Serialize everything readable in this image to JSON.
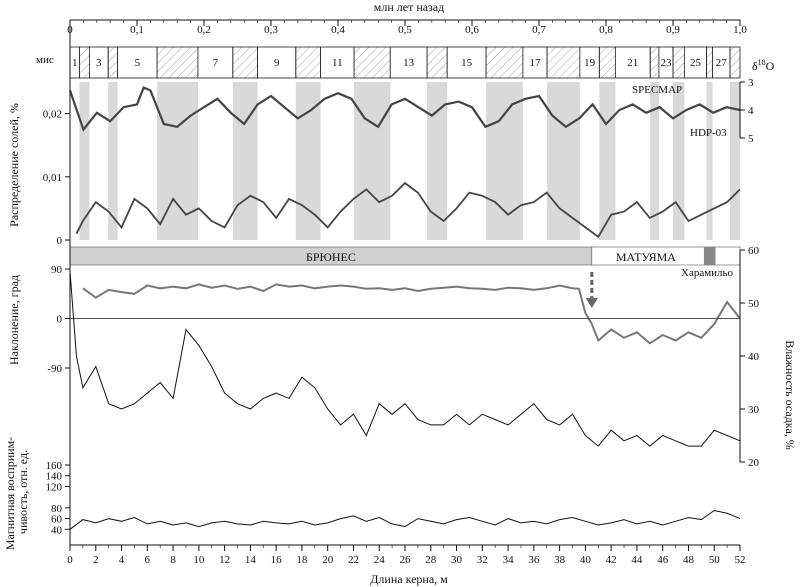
{
  "chart_data": {
    "type": "line",
    "top_axis": {
      "label": "млн лет назад",
      "range": [
        0,
        1.0
      ],
      "tick_labels": [
        "0",
        "0,1",
        "0,2",
        "0,3",
        "0,4",
        "0,5",
        "0,6",
        "0,7",
        "0,8",
        "0,9",
        "1,0"
      ],
      "tick_values": [
        0,
        0.1,
        0.2,
        0.3,
        0.4,
        0.5,
        0.6,
        0.7,
        0.8,
        0.9,
        1.0
      ]
    },
    "bottom_axis": {
      "label": "Длина керна, м",
      "range": [
        0,
        52
      ],
      "tick_labels": [
        "0",
        "2",
        "4",
        "6",
        "8",
        "10",
        "12",
        "14",
        "16",
        "18",
        "20",
        "22",
        "24",
        "26",
        "28",
        "30",
        "32",
        "34",
        "36",
        "38",
        "40",
        "42",
        "44",
        "46",
        "48",
        "50",
        "52"
      ],
      "tick_values": [
        0,
        2,
        4,
        6,
        8,
        10,
        12,
        14,
        16,
        18,
        20,
        22,
        24,
        26,
        28,
        30,
        32,
        34,
        36,
        38,
        40,
        42,
        44,
        46,
        48,
        50,
        52
      ]
    },
    "mis": {
      "label": "мис",
      "stages": [
        {
          "label": "1",
          "start": 0.0,
          "end": 0.014,
          "glacial": false
        },
        {
          "label": "",
          "start": 0.014,
          "end": 0.029,
          "glacial": true
        },
        {
          "label": "3",
          "start": 0.029,
          "end": 0.057,
          "glacial": false
        },
        {
          "label": "",
          "start": 0.057,
          "end": 0.071,
          "glacial": true
        },
        {
          "label": "5",
          "start": 0.071,
          "end": 0.13,
          "glacial": false
        },
        {
          "label": "",
          "start": 0.13,
          "end": 0.191,
          "glacial": true
        },
        {
          "label": "7",
          "start": 0.191,
          "end": 0.243,
          "glacial": false
        },
        {
          "label": "",
          "start": 0.243,
          "end": 0.28,
          "glacial": true
        },
        {
          "label": "9",
          "start": 0.28,
          "end": 0.337,
          "glacial": false
        },
        {
          "label": "",
          "start": 0.337,
          "end": 0.374,
          "glacial": true
        },
        {
          "label": "11",
          "start": 0.374,
          "end": 0.424,
          "glacial": false
        },
        {
          "label": "",
          "start": 0.424,
          "end": 0.478,
          "glacial": true
        },
        {
          "label": "13",
          "start": 0.478,
          "end": 0.533,
          "glacial": false
        },
        {
          "label": "",
          "start": 0.533,
          "end": 0.563,
          "glacial": true
        },
        {
          "label": "15",
          "start": 0.563,
          "end": 0.621,
          "glacial": false
        },
        {
          "label": "",
          "start": 0.621,
          "end": 0.676,
          "glacial": true
        },
        {
          "label": "17",
          "start": 0.676,
          "end": 0.712,
          "glacial": false
        },
        {
          "label": "",
          "start": 0.712,
          "end": 0.761,
          "glacial": true
        },
        {
          "label": "19",
          "start": 0.761,
          "end": 0.79,
          "glacial": false
        },
        {
          "label": "",
          "start": 0.79,
          "end": 0.814,
          "glacial": true
        },
        {
          "label": "21",
          "start": 0.814,
          "end": 0.866,
          "glacial": false
        },
        {
          "label": "",
          "start": 0.866,
          "end": 0.879,
          "glacial": true
        },
        {
          "label": "23",
          "start": 0.879,
          "end": 0.9,
          "glacial": false
        },
        {
          "label": "",
          "start": 0.9,
          "end": 0.917,
          "glacial": true
        },
        {
          "label": "25",
          "start": 0.917,
          "end": 0.95,
          "glacial": false
        },
        {
          "label": "",
          "start": 0.95,
          "end": 0.959,
          "glacial": true
        },
        {
          "label": "27",
          "start": 0.959,
          "end": 0.985,
          "glacial": false
        },
        {
          "label": "",
          "start": 0.985,
          "end": 1.0,
          "glacial": true
        }
      ]
    },
    "panels": [
      {
        "id": "salts",
        "ylabel": "Распределение солей, %",
        "ylim": [
          0,
          0.025
        ],
        "tick_labels": [
          "0",
          "0,01",
          "0,02"
        ],
        "tick_values": [
          0,
          0.01,
          0.02
        ],
        "right_axis": {
          "label": "δ18O",
          "tick_labels": [
            "3",
            "4",
            "5"
          ],
          "tick_values": [
            3,
            4,
            5
          ],
          "inverted": true
        },
        "series": [
          {
            "name": "SPECMAP",
            "axis": "right",
            "x_unit": "Ma",
            "x": [
              0.0,
              0.02,
              0.04,
              0.06,
              0.08,
              0.1,
              0.11,
              0.12,
              0.14,
              0.16,
              0.18,
              0.2,
              0.22,
              0.24,
              0.26,
              0.28,
              0.3,
              0.32,
              0.34,
              0.36,
              0.38,
              0.4,
              0.42,
              0.44,
              0.46,
              0.48,
              0.5,
              0.52,
              0.54,
              0.56,
              0.58,
              0.6,
              0.62,
              0.64,
              0.66,
              0.68,
              0.7,
              0.72,
              0.74,
              0.76,
              0.78,
              0.8,
              0.82,
              0.84,
              0.86,
              0.88,
              0.9,
              0.92,
              0.94,
              0.96,
              0.98,
              1.0
            ],
            "y": [
              3.3,
              4.7,
              4.1,
              4.4,
              3.9,
              3.8,
              3.2,
              3.3,
              4.5,
              4.6,
              4.2,
              3.9,
              3.6,
              4.1,
              4.5,
              3.8,
              3.5,
              3.9,
              4.3,
              4.0,
              3.6,
              3.4,
              3.6,
              4.3,
              4.6,
              3.8,
              3.6,
              3.9,
              4.2,
              3.8,
              3.7,
              3.9,
              4.6,
              4.4,
              3.8,
              3.6,
              3.5,
              4.2,
              4.6,
              4.3,
              3.8,
              4.5,
              4.0,
              3.8,
              4.1,
              3.9,
              4.3,
              4.0,
              3.8,
              4.1,
              3.9,
              4.0
            ]
          },
          {
            "name": "HDP-03",
            "axis": "left",
            "x_unit": "m",
            "x": [
              0.5,
              1,
              2,
              3,
              4,
              5,
              6,
              7,
              8,
              9,
              10,
              11,
              12,
              13,
              14,
              15,
              16,
              17,
              18,
              19,
              20,
              21,
              22,
              23,
              24,
              25,
              26,
              27,
              28,
              29,
              30,
              31,
              32,
              33,
              34,
              35,
              36,
              37,
              38,
              39,
              40,
              41,
              42,
              43,
              44,
              45,
              46,
              47,
              48,
              49,
              50,
              51,
              52
            ],
            "y": [
              0.001,
              0.003,
              0.006,
              0.0045,
              0.002,
              0.0065,
              0.005,
              0.0025,
              0.0065,
              0.004,
              0.005,
              0.003,
              0.002,
              0.0055,
              0.007,
              0.006,
              0.0035,
              0.0065,
              0.0055,
              0.004,
              0.002,
              0.0045,
              0.0065,
              0.008,
              0.006,
              0.007,
              0.009,
              0.0075,
              0.0045,
              0.003,
              0.005,
              0.0075,
              0.007,
              0.006,
              0.004,
              0.0055,
              0.006,
              0.0075,
              0.005,
              0.0035,
              0.002,
              0.0005,
              0.004,
              0.0045,
              0.006,
              0.0035,
              0.0045,
              0.006,
              0.003,
              0.004,
              0.005,
              0.006,
              0.008
            ]
          }
        ]
      },
      {
        "id": "inclination",
        "ylabel": "Наклонение, град",
        "ylim": [
          -90,
          90
        ],
        "tick_labels": [
          "-90",
          "0",
          "90"
        ],
        "tick_values": [
          -90,
          0,
          90
        ],
        "right_axis": {
          "label": "Влажность осадка, %",
          "tick_labels": [
            "20",
            "30",
            "40",
            "50",
            "60"
          ],
          "tick_values": [
            20,
            30,
            40,
            50,
            60
          ]
        },
        "magnetozones": [
          {
            "label": "БРЮНЕС",
            "start": 0,
            "end": 40.5,
            "polarity": "normal"
          },
          {
            "label": "МАТУЯМА",
            "start": 40.5,
            "end": 52,
            "polarity": "reversed"
          },
          {
            "label": "Харамильо",
            "start": 49.2,
            "end": 50.1,
            "polarity": "normal"
          }
        ],
        "series": [
          {
            "name": "Наклонение",
            "axis": "left",
            "x": [
              1,
              2,
              3,
              4,
              5,
              6,
              7,
              8,
              9,
              10,
              11,
              12,
              13,
              14,
              15,
              16,
              17,
              18,
              19,
              20,
              21,
              22,
              23,
              24,
              25,
              26,
              27,
              28,
              29,
              30,
              31,
              32,
              33,
              34,
              35,
              36,
              37,
              38,
              39,
              39.5,
              40,
              40.5,
              41,
              42,
              43,
              44,
              45,
              46,
              47,
              48,
              49,
              50,
              51,
              52
            ],
            "y": [
              55,
              38,
              52,
              48,
              45,
              60,
              55,
              58,
              55,
              62,
              56,
              60,
              54,
              58,
              50,
              62,
              58,
              60,
              55,
              58,
              60,
              58,
              54,
              55,
              52,
              55,
              50,
              54,
              56,
              58,
              55,
              54,
              52,
              56,
              55,
              52,
              55,
              60,
              55,
              54,
              10,
              -10,
              -40,
              -20,
              -35,
              -25,
              -45,
              -30,
              -40,
              -25,
              -35,
              -10,
              30,
              0
            ]
          },
          {
            "name": "Влажность осадка",
            "axis": "right",
            "x": [
              0,
              0.5,
              1,
              2,
              3,
              4,
              5,
              6,
              7,
              8,
              9,
              10,
              11,
              12,
              13,
              14,
              15,
              16,
              17,
              18,
              19,
              20,
              21,
              22,
              23,
              24,
              25,
              26,
              27,
              28,
              29,
              30,
              31,
              32,
              33,
              34,
              35,
              36,
              37,
              38,
              39,
              40,
              41,
              42,
              43,
              44,
              45,
              46,
              47,
              48,
              49,
              50,
              51,
              52
            ],
            "y": [
              56,
              40,
              34,
              38,
              31,
              30,
              31,
              33,
              35,
              32,
              45,
              42,
              38,
              33,
              31,
              30,
              32,
              33,
              32,
              36,
              34,
              30,
              27,
              29,
              25,
              31,
              29,
              31,
              28,
              27,
              27,
              29,
              27,
              29,
              28,
              27,
              29,
              31,
              28,
              27,
              29,
              25,
              23,
              26,
              24,
              25,
              23,
              25,
              24,
              23,
              23,
              26,
              25,
              24
            ]
          }
        ]
      },
      {
        "id": "susceptibility",
        "ylabel": "Магнитная восприим-чивость, отн. ед.",
        "ylim": [
          20,
          160
        ],
        "tick_labels": [
          "40",
          "60",
          "80",
          "120",
          "140",
          "160"
        ],
        "tick_values": [
          40,
          60,
          80,
          120,
          140,
          160
        ],
        "series": [
          {
            "name": "Магнитная восприимчивость",
            "x": [
              0,
              1,
              2,
              3,
              4,
              5,
              6,
              7,
              8,
              9,
              10,
              11,
              12,
              13,
              14,
              15,
              16,
              17,
              18,
              19,
              20,
              21,
              22,
              23,
              24,
              25,
              26,
              27,
              28,
              29,
              30,
              31,
              32,
              33,
              34,
              35,
              36,
              37,
              38,
              39,
              40,
              41,
              42,
              43,
              44,
              45,
              46,
              47,
              48,
              49,
              50,
              51,
              52
            ],
            "y": [
              40,
              58,
              52,
              60,
              55,
              62,
              50,
              55,
              48,
              52,
              45,
              52,
              55,
              50,
              48,
              55,
              52,
              50,
              55,
              48,
              52,
              60,
              65,
              55,
              62,
              50,
              45,
              60,
              55,
              50,
              58,
              62,
              55,
              48,
              60,
              52,
              55,
              50,
              58,
              62,
              55,
              48,
              52,
              58,
              50,
              55,
              48,
              55,
              62,
              58,
              75,
              70,
              60
            ]
          }
        ]
      }
    ]
  },
  "annotations": {
    "specmap_label": "SPECMAP",
    "hdp_label": "HDP-03",
    "mis_label": "мис"
  }
}
